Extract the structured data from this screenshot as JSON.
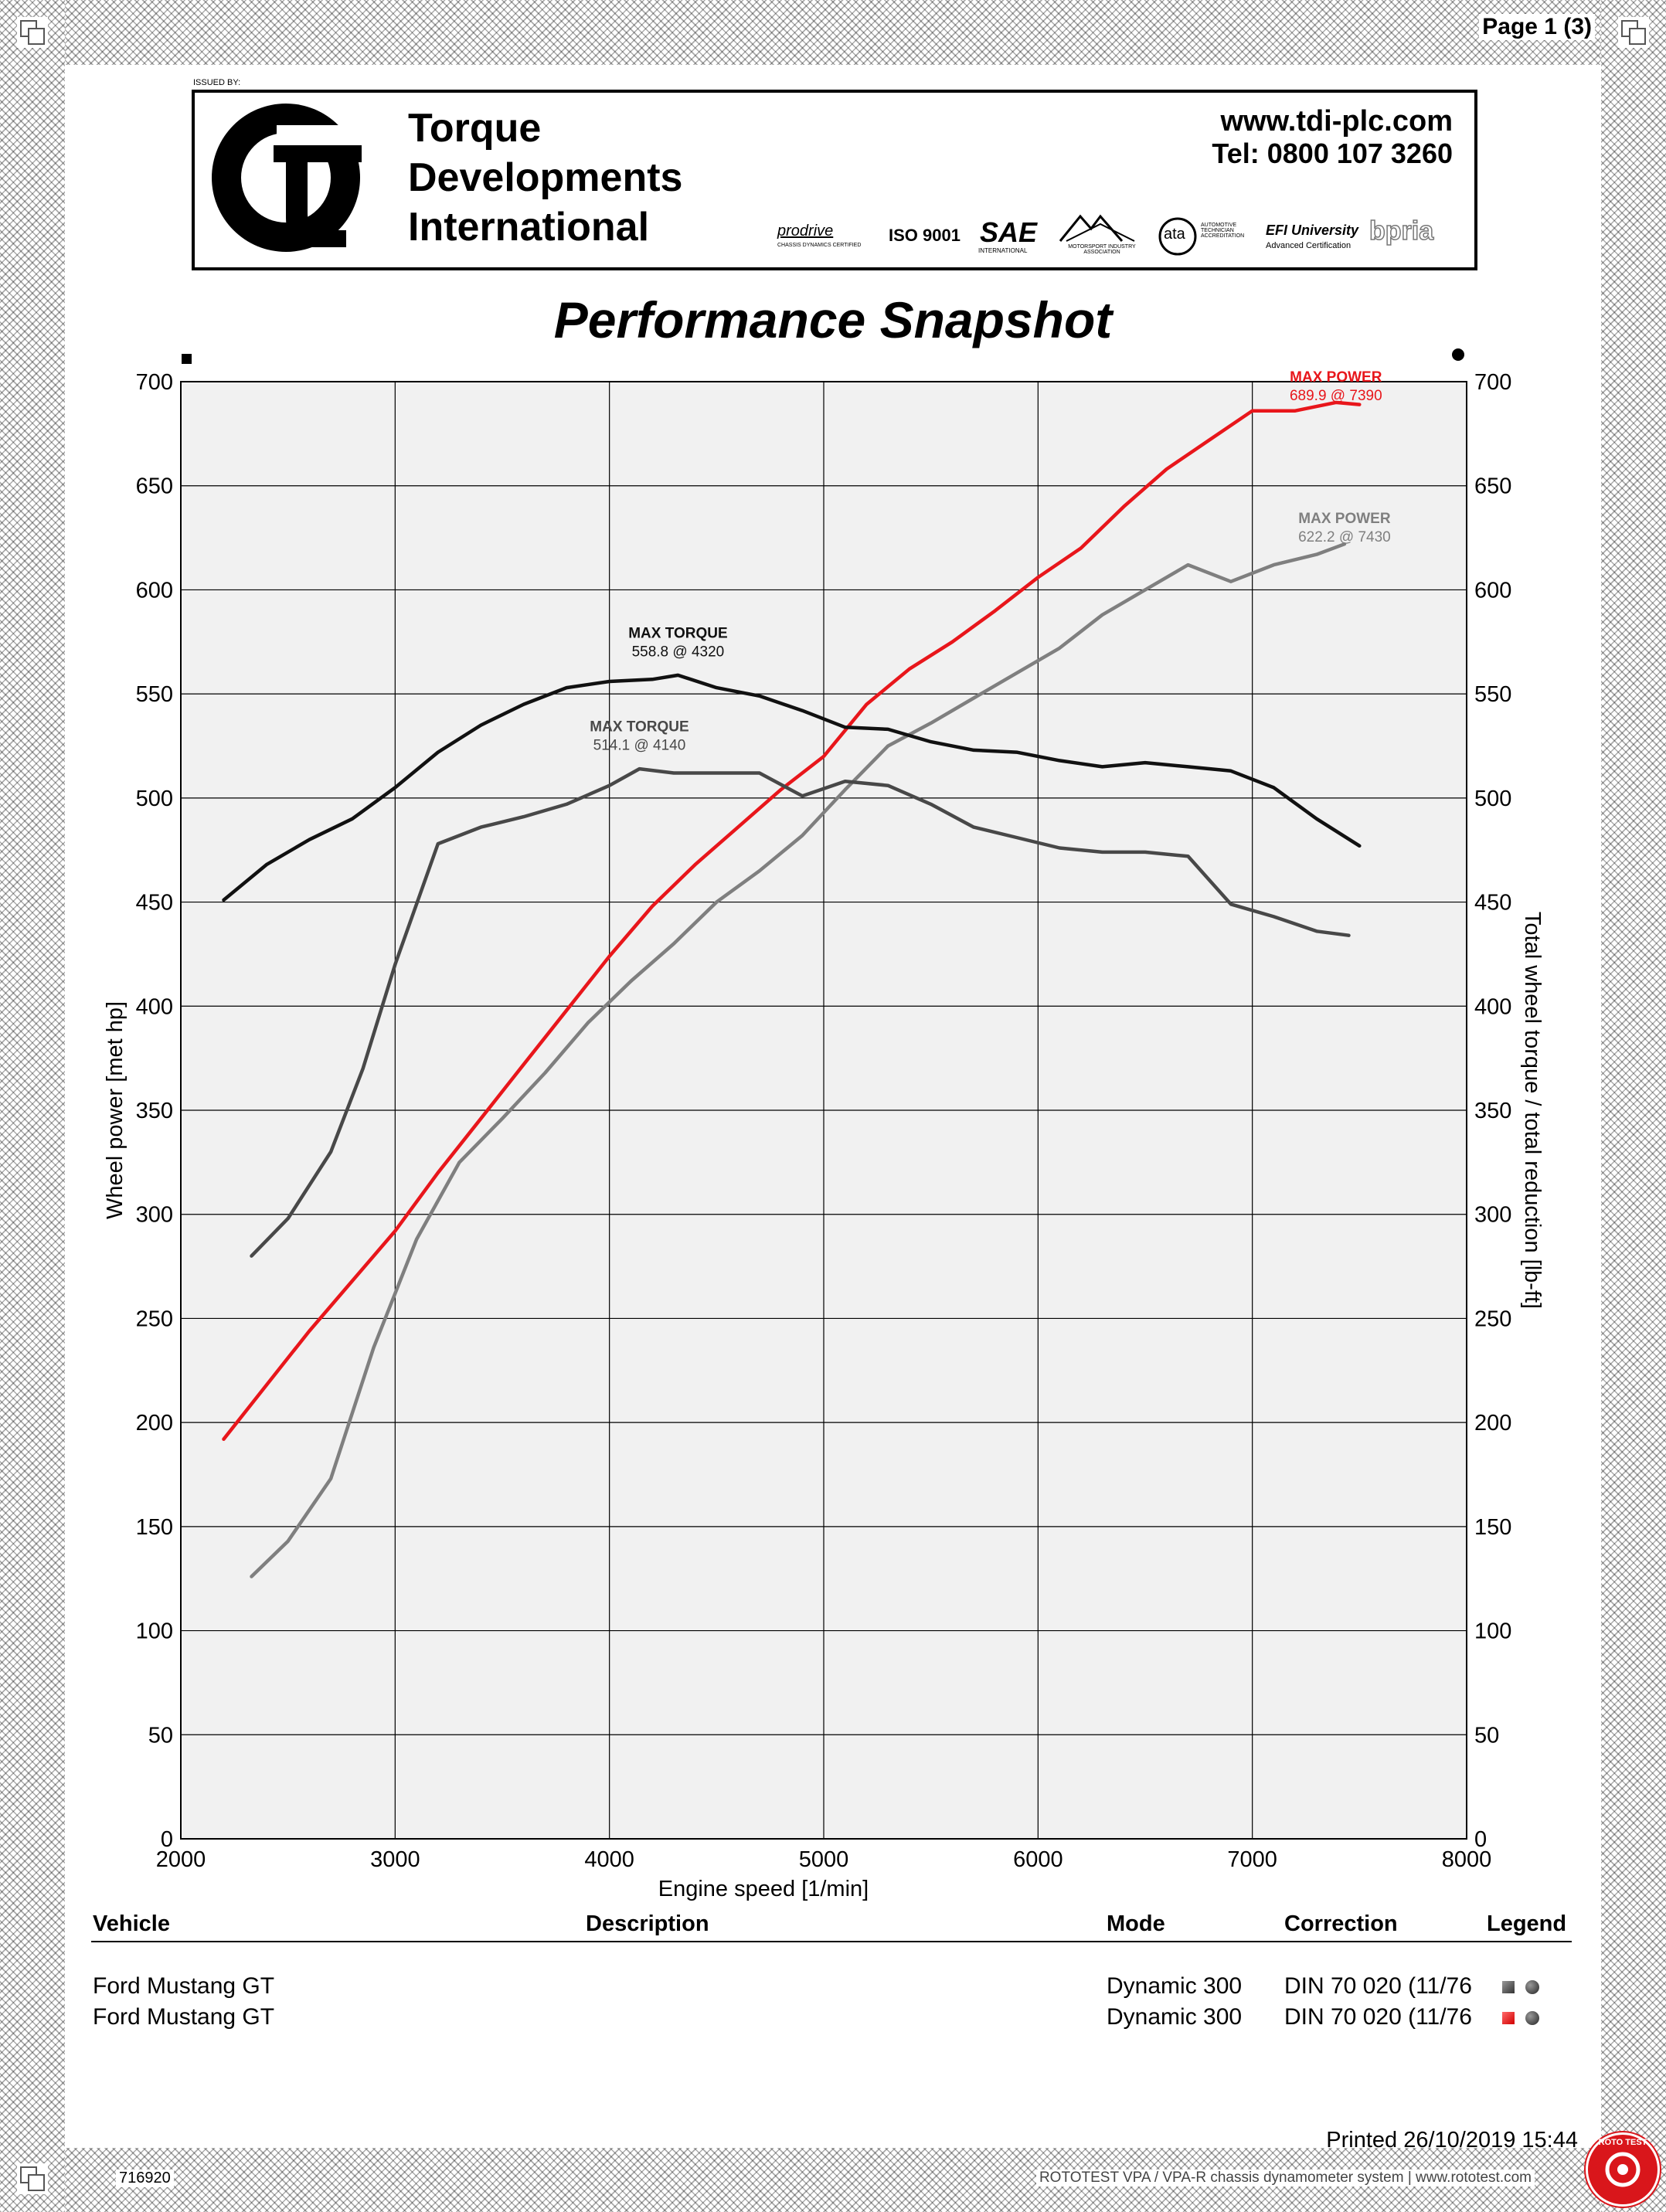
{
  "page_label": "Page 1 (3)",
  "header": {
    "issued_by": "ISSUED BY:",
    "company_lines": [
      "Torque",
      "Developments",
      "International"
    ],
    "website": "www.tdi-plc.com",
    "phone": "Tel: 0800 107 3260",
    "accreditations": {
      "prodrive": "prodrive",
      "prodrive_sub": "CHASSIS DYNAMICS CERTIFIED",
      "iso": "ISO 9001",
      "sae": "SAE",
      "sae_sub": "INTERNATIONAL",
      "mia_sub": "MOTORSPORT INDUSTRY ASSOCIATION",
      "ata": "ata",
      "ata_sub": "AUTOMOTIVE TECHNICIAN ACCREDITATION",
      "efi": "EFI University",
      "efi_sub": "Advanced Certification",
      "brand": "bpria"
    }
  },
  "title": "Performance Snapshot",
  "chart_data": {
    "type": "line",
    "xlabel": "Engine speed [1/min]",
    "ylabel_left": "Wheel power [met hp]",
    "ylabel_right": "Total wheel torque / total reduction [lb-ft]",
    "xlim": [
      2000,
      8000
    ],
    "ylim": [
      0,
      700
    ],
    "x_ticks": [
      2000,
      3000,
      4000,
      5000,
      6000,
      7000,
      8000
    ],
    "y_ticks": [
      0,
      50,
      100,
      150,
      200,
      250,
      300,
      350,
      400,
      450,
      500,
      550,
      600,
      650,
      700
    ],
    "grid": true,
    "series": [
      {
        "color": "#E8161B",
        "x": [
          2200,
          2400,
          2600,
          2800,
          3000,
          3200,
          3400,
          3600,
          3800,
          4000,
          4200,
          4400,
          4600,
          4800,
          5000,
          5200,
          5400,
          5600,
          5800,
          6000,
          6200,
          6400,
          6600,
          6800,
          7000,
          7200,
          7390,
          7500
        ],
        "y": [
          192,
          218,
          244,
          268,
          292,
          320,
          346,
          372,
          398,
          424,
          448,
          468,
          486,
          504,
          520,
          545,
          562,
          575,
          590,
          606,
          620,
          640,
          658,
          672,
          686,
          686,
          690,
          689
        ]
      },
      {
        "color": "#7F7F7F",
        "x": [
          2330,
          2500,
          2700,
          2900,
          3100,
          3300,
          3500,
          3700,
          3900,
          4100,
          4300,
          4500,
          4700,
          4900,
          5100,
          5300,
          5500,
          5700,
          5900,
          6100,
          6300,
          6500,
          6700,
          6900,
          7100,
          7300,
          7430
        ],
        "y": [
          126,
          143,
          173,
          236,
          288,
          325,
          346,
          368,
          392,
          412,
          430,
          450,
          465,
          482,
          504,
          525,
          536,
          548,
          560,
          572,
          588,
          600,
          612,
          604,
          612,
          617,
          622
        ]
      },
      {
        "color": "#111111",
        "x": [
          2200,
          2400,
          2600,
          2800,
          3000,
          3200,
          3400,
          3600,
          3800,
          4000,
          4200,
          4320,
          4500,
          4700,
          4900,
          5100,
          5300,
          5500,
          5700,
          5900,
          6100,
          6300,
          6500,
          6700,
          6900,
          7100,
          7300,
          7500
        ],
        "y": [
          451,
          468,
          480,
          490,
          505,
          522,
          535,
          545,
          553,
          556,
          557,
          559,
          553,
          549,
          542,
          534,
          533,
          527,
          523,
          522,
          518,
          515,
          517,
          515,
          513,
          505,
          490,
          477
        ]
      },
      {
        "color": "#484848",
        "x": [
          2330,
          2500,
          2700,
          2850,
          3000,
          3200,
          3400,
          3600,
          3800,
          4000,
          4140,
          4300,
          4500,
          4700,
          4900,
          5100,
          5300,
          5500,
          5700,
          5900,
          6100,
          6300,
          6500,
          6700,
          6900,
          7100,
          7300,
          7450
        ],
        "y": [
          280,
          298,
          330,
          370,
          420,
          478,
          486,
          491,
          497,
          506,
          514,
          512,
          512,
          512,
          501,
          508,
          506,
          497,
          486,
          481,
          476,
          474,
          474,
          472,
          449,
          443,
          436,
          434
        ]
      }
    ],
    "annotations": [
      {
        "lines": [
          "MAX POWER",
          "689.9 @ 7390"
        ],
        "color": "#E8161B",
        "x": 7390,
        "y": 700
      },
      {
        "lines": [
          "MAX POWER",
          "622.2 @ 7430"
        ],
        "color": "#7F7F7F",
        "x": 7430,
        "y": 632
      },
      {
        "lines": [
          "MAX TORQUE",
          "558.8 @ 4320"
        ],
        "color": "#111111",
        "x": 4320,
        "y": 577
      },
      {
        "lines": [
          "MAX TORQUE",
          "514.1 @ 4140"
        ],
        "color": "#484848",
        "x": 4140,
        "y": 532
      }
    ]
  },
  "table": {
    "headers": {
      "vehicle": "Vehicle",
      "description": "Description",
      "mode": "Mode",
      "correction": "Correction",
      "legend": "Legend"
    },
    "rows": [
      {
        "vehicle": "Ford Mustang GT",
        "description": "",
        "mode": "Dynamic 300",
        "correction": "DIN 70 020 (11/76",
        "legend_color": "#555555"
      },
      {
        "vehicle": "Ford  Mustang GT",
        "description": "",
        "mode": "Dynamic 300",
        "correction": "DIN 70 020 (11/76",
        "legend_color": "#E8161B"
      }
    ]
  },
  "printed": "Printed 26/10/2019 15:44",
  "footer": {
    "doc_id": "716920",
    "system": "ROTOTEST VPA / VPA-R chassis dynamometer system | www.rototest.com",
    "seal_text": "ROTO TEST"
  }
}
